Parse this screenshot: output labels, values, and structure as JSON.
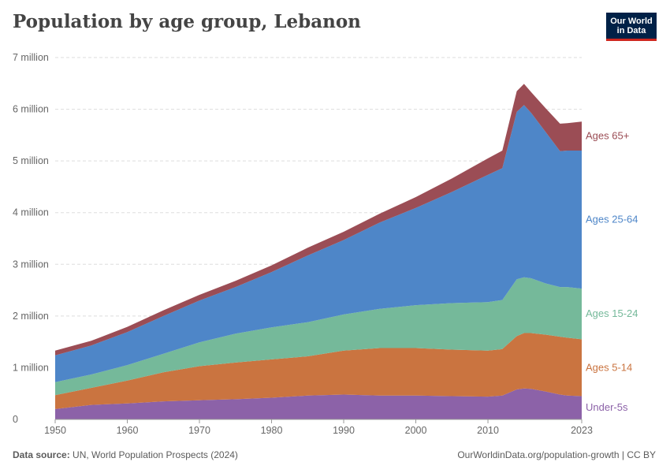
{
  "header": {
    "title": "Population by age group, Lebanon",
    "logo_line1": "Our World",
    "logo_line2": "in Data"
  },
  "footer": {
    "source_label": "Data source:",
    "source_text": "UN, World Population Prospects (2024)",
    "attribution": "OurWorldinData.org/population-growth | CC BY"
  },
  "chart_data": {
    "type": "area",
    "stacked": true,
    "title": "Population by age group, Lebanon",
    "xlim": [
      1950,
      2023
    ],
    "ylim": [
      0,
      7000000
    ],
    "y_ticks": [
      0,
      1000000,
      2000000,
      3000000,
      4000000,
      5000000,
      6000000,
      7000000
    ],
    "y_tick_labels": [
      "0",
      "1 million",
      "2 million",
      "3 million",
      "4 million",
      "5 million",
      "6 million",
      "7 million"
    ],
    "x_ticks": [
      1950,
      1960,
      1970,
      1980,
      1990,
      2000,
      2010,
      2023
    ],
    "x_tick_labels": [
      "1950",
      "1960",
      "1970",
      "1980",
      "1990",
      "2000",
      "2010",
      "2023"
    ],
    "grid": "horizontal dashed",
    "legend": "right, labels at series end",
    "x": [
      1950,
      1955,
      1960,
      1965,
      1970,
      1975,
      1980,
      1985,
      1990,
      1995,
      2000,
      2005,
      2010,
      2012,
      2014,
      2015,
      2016,
      2018,
      2020,
      2021,
      2023
    ],
    "series": [
      {
        "name": "Under-5s",
        "color": "#8c62a8",
        "values": [
          200000,
          280000,
          310000,
          350000,
          370000,
          390000,
          420000,
          460000,
          480000,
          460000,
          460000,
          450000,
          440000,
          460000,
          580000,
          600000,
          590000,
          540000,
          480000,
          460000,
          450000
        ]
      },
      {
        "name": "Ages 5-14",
        "color": "#ca7440",
        "values": [
          270000,
          330000,
          440000,
          560000,
          660000,
          710000,
          740000,
          760000,
          850000,
          920000,
          920000,
          900000,
          890000,
          900000,
          1030000,
          1070000,
          1080000,
          1100000,
          1120000,
          1120000,
          1100000
        ]
      },
      {
        "name": "Ages 15-24",
        "color": "#75b99a",
        "values": [
          250000,
          260000,
          300000,
          360000,
          460000,
          560000,
          620000,
          660000,
          700000,
          760000,
          830000,
          900000,
          940000,
          950000,
          1100000,
          1080000,
          1060000,
          990000,
          960000,
          980000,
          980000
        ]
      },
      {
        "name": "Ages 25-64",
        "color": "#4e86c8",
        "values": [
          520000,
          560000,
          640000,
          730000,
          810000,
          900000,
          1070000,
          1290000,
          1440000,
          1670000,
          1880000,
          2150000,
          2460000,
          2550000,
          3240000,
          3330000,
          3200000,
          2930000,
          2630000,
          2640000,
          2670000
        ]
      },
      {
        "name": "Ages 65+",
        "color": "#9b4d55",
        "values": [
          90000,
          90000,
          100000,
          110000,
          110000,
          120000,
          130000,
          150000,
          160000,
          170000,
          210000,
          260000,
          320000,
          340000,
          400000,
          410000,
          400000,
          460000,
          530000,
          530000,
          560000
        ]
      }
    ]
  }
}
